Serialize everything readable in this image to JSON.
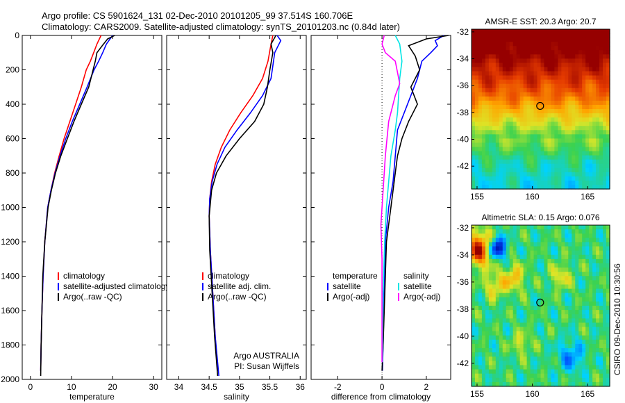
{
  "header": {
    "title_line1": "Argo profile: CS 5901624_131 02-Dec-2010 20101205_99 37.514S 160.706E",
    "title_line2": "Climatology: CARS2009. Satellite-adjusted climatology: synTS_20101203.nc (0.84d later)"
  },
  "side_stamp": "CSIRO 09-Dec-2010 10:30:56",
  "colors": {
    "red": "#ff0000",
    "blue": "#0000ff",
    "black": "#000000",
    "cyan": "#00e5e5",
    "magenta": "#ff00ff"
  },
  "chart_data": [
    {
      "type": "line",
      "xlabel": "temperature",
      "ylim": [
        2000,
        0
      ],
      "xlim": [
        -2,
        32
      ],
      "xticks": [
        0,
        10,
        20,
        30
      ],
      "yticks": [
        0,
        200,
        400,
        600,
        800,
        1000,
        1200,
        1400,
        1600,
        1800,
        2000
      ],
      "legend": {
        "location": "lower-center",
        "entries": [
          "climatology",
          "satellite-adjusted climatology",
          "Argo(..raw -QC)"
        ]
      },
      "series": [
        {
          "name": "climatology",
          "color": "red",
          "x": [
            17.2,
            16.2,
            15.4,
            14.6,
            13.6,
            12.4,
            11.0,
            9.6,
            8.2,
            7.0,
            5.9,
            5.0,
            4.2,
            3.5,
            3.1,
            2.8,
            2.6,
            2.5
          ],
          "y": [
            0,
            50,
            100,
            150,
            200,
            300,
            400,
            500,
            600,
            700,
            800,
            900,
            1000,
            1200,
            1400,
            1600,
            1800,
            1950
          ]
        },
        {
          "name": "satellite-adjusted climatology",
          "color": "blue",
          "x": [
            20.0,
            18.5,
            17.6,
            16.6,
            15.5,
            13.8,
            12.0,
            10.2,
            8.6,
            7.2,
            6.0,
            5.0,
            4.2,
            3.5,
            3.1,
            2.8,
            2.6,
            2.5
          ],
          "y": [
            0,
            50,
            100,
            150,
            200,
            300,
            400,
            500,
            600,
            700,
            800,
            900,
            1000,
            1200,
            1400,
            1600,
            1800,
            1950
          ]
        },
        {
          "name": "Argo(..raw -QC)",
          "color": "black",
          "x": [
            20.5,
            18.8,
            17.8,
            16.2,
            15.8,
            14.2,
            12.4,
            10.6,
            9.0,
            7.4,
            6.1,
            5.1,
            4.3,
            3.5,
            3.0,
            2.8,
            2.6,
            2.5
          ],
          "y": [
            0,
            20,
            50,
            100,
            150,
            300,
            400,
            500,
            600,
            700,
            800,
            900,
            1000,
            1200,
            1400,
            1600,
            1800,
            1980
          ]
        }
      ]
    },
    {
      "type": "line",
      "xlabel": "salinity",
      "ylim": [
        2000,
        0
      ],
      "xlim": [
        33.8,
        36.1
      ],
      "xticks": [
        34,
        34.5,
        35,
        35.5,
        36
      ],
      "legend": {
        "location": "lower-center",
        "entries": [
          "climatology",
          "satellite adj. clim.",
          "Argo(..raw -QC)"
        ]
      },
      "annotation": [
        "Argo AUSTRALIA",
        "PI: Susan Wijffels"
      ],
      "series": [
        {
          "name": "climatology",
          "color": "red",
          "x": [
            35.55,
            35.52,
            35.47,
            35.38,
            35.22,
            35.02,
            34.84,
            34.7,
            34.6,
            34.54,
            34.51,
            34.5,
            34.52,
            34.56,
            34.6,
            34.64
          ],
          "y": [
            0,
            50,
            150,
            250,
            350,
            450,
            550,
            650,
            750,
            850,
            950,
            1050,
            1250,
            1500,
            1750,
            1950
          ]
        },
        {
          "name": "satellite adj. clim.",
          "color": "blue",
          "x": [
            35.62,
            35.68,
            35.58,
            35.52,
            35.38,
            35.18,
            34.96,
            34.76,
            34.63,
            34.55,
            34.51,
            34.5,
            34.52,
            34.56,
            34.6,
            34.66
          ],
          "y": [
            0,
            30,
            100,
            250,
            350,
            450,
            550,
            650,
            750,
            850,
            950,
            1050,
            1250,
            1500,
            1750,
            1980
          ]
        },
        {
          "name": "Argo(..raw -QC)",
          "color": "black",
          "x": [
            35.6,
            35.52,
            35.55,
            35.5,
            35.46,
            35.4,
            35.25,
            35.0,
            34.78,
            34.62,
            34.54,
            34.5,
            34.51,
            34.55,
            34.59,
            34.64
          ],
          "y": [
            0,
            50,
            100,
            200,
            300,
            400,
            500,
            600,
            700,
            800,
            900,
            1050,
            1250,
            1500,
            1750,
            1980
          ]
        }
      ]
    },
    {
      "type": "line",
      "xlabel": "difference from climatology",
      "ylim": [
        2000,
        0
      ],
      "xlim": [
        -3.2,
        3.1
      ],
      "xticks": [
        -2,
        0,
        2
      ],
      "legend": {
        "location": "lower-center",
        "entries": [
          "temperature",
          "satellite",
          "Argo(-adj)",
          "salinity",
          "satellite",
          "Argo(-adj)"
        ]
      },
      "series": [
        {
          "name": "temperature satellite",
          "color": "blue",
          "x": [
            2.8,
            2.4,
            2.5,
            2.2,
            1.8,
            1.6,
            1.3,
            1.0,
            0.7,
            0.6,
            0.5,
            0.3,
            0.15,
            0.1,
            0.05,
            0.02
          ],
          "y": [
            0,
            30,
            60,
            100,
            150,
            250,
            350,
            450,
            550,
            700,
            850,
            1000,
            1200,
            1500,
            1800,
            1950
          ]
        },
        {
          "name": "temperature Argo(-adj)",
          "color": "black",
          "x": [
            3.0,
            2.0,
            1.2,
            1.5,
            1.7,
            1.3,
            1.6,
            1.2,
            0.9,
            0.7,
            0.6,
            0.4,
            0.2,
            0.15,
            0.05,
            0.0
          ],
          "y": [
            0,
            20,
            60,
            120,
            200,
            300,
            400,
            500,
            600,
            700,
            800,
            1000,
            1200,
            1400,
            1800,
            1950
          ]
        },
        {
          "name": "salinity satellite",
          "color": "cyan",
          "x": [
            0.6,
            0.8,
            0.9,
            0.8,
            0.75,
            0.7,
            0.6,
            0.4,
            0.3,
            0.2,
            0.12,
            0.05,
            0.02
          ],
          "y": [
            0,
            50,
            150,
            250,
            350,
            450,
            550,
            700,
            850,
            1000,
            1200,
            1500,
            1900
          ]
        },
        {
          "name": "salinity Argo(-adj)",
          "color": "magenta",
          "x": [
            0.1,
            0.0,
            0.15,
            0.6,
            0.8,
            0.6,
            0.3,
            0.15,
            0.05,
            -0.05,
            0.0,
            0.0,
            0.0
          ],
          "y": [
            0,
            50,
            100,
            150,
            280,
            350,
            500,
            700,
            900,
            1100,
            1300,
            1600,
            1900
          ]
        }
      ]
    },
    {
      "type": "heatmap",
      "title": "AMSR-E SST: 20.3 Argo: 20.7",
      "xlim": [
        154.5,
        167
      ],
      "ylim": [
        -43.7,
        -31.8
      ],
      "xticks": [
        155,
        160,
        165
      ],
      "yticks": [
        -32,
        -34,
        -36,
        -38,
        -40,
        -42
      ],
      "marker": {
        "lon": 160.706,
        "lat": -37.514
      }
    },
    {
      "type": "heatmap",
      "title": "Altimetric SLA: 0.15 Argo: 0.076",
      "xlim": [
        154.5,
        167
      ],
      "ylim": [
        -43.7,
        -31.8
      ],
      "xticks": [
        155,
        160,
        165
      ],
      "yticks": [
        -32,
        -34,
        -36,
        -38,
        -40,
        -42
      ],
      "marker": {
        "lon": 160.706,
        "lat": -37.514
      }
    }
  ]
}
